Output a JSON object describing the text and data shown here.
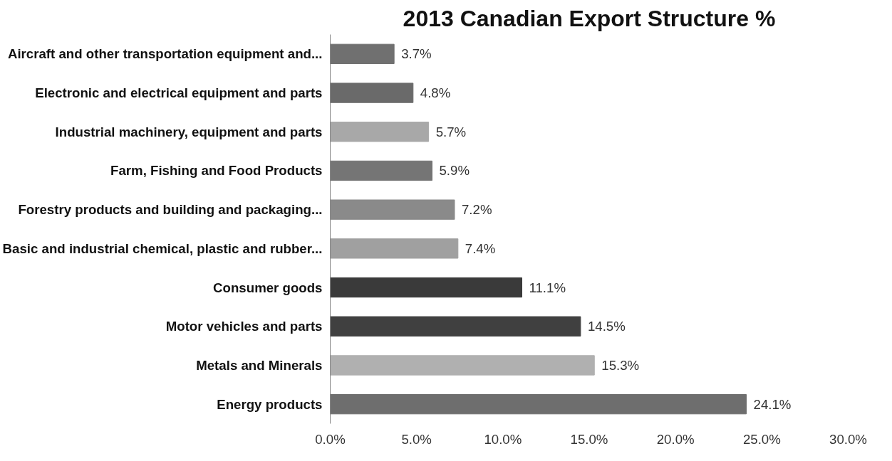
{
  "chart_data": {
    "type": "bar",
    "orientation": "horizontal",
    "title": "2013 Canadian Export Structure %",
    "categories": [
      "Aircraft and other transportation equipment and...",
      "Electronic and electrical equipment and parts",
      "Industrial machinery, equipment and parts",
      "Farm, Fishing and Food Products",
      "Forestry products and building and packaging...",
      "Basic and industrial chemical, plastic and rubber...",
      "Consumer goods",
      "Motor vehicles and parts",
      "Metals and Minerals",
      "Energy products"
    ],
    "values": [
      3.7,
      4.8,
      5.7,
      5.9,
      7.2,
      7.4,
      11.1,
      14.5,
      15.3,
      24.1
    ],
    "value_labels": [
      "3.7%",
      "4.8%",
      "5.7%",
      "5.9%",
      "7.2%",
      "7.4%",
      "11.1%",
      "14.5%",
      "15.3%",
      "24.1%"
    ],
    "colors": [
      "#707070",
      "#6a6a6a",
      "#a8a8a8",
      "#757575",
      "#8a8a8a",
      "#a0a0a0",
      "#3a3a3a",
      "#404040",
      "#b0b0b0",
      "#6e6e6e"
    ],
    "xlim": [
      0,
      30
    ],
    "xticks": [
      {
        "value": 0,
        "label": "0.0%"
      },
      {
        "value": 5,
        "label": "5.0%"
      },
      {
        "value": 10,
        "label": "10.0%"
      },
      {
        "value": 15,
        "label": "15.0%"
      },
      {
        "value": 20,
        "label": "20.0%"
      },
      {
        "value": 25,
        "label": "25.0%"
      },
      {
        "value": 30,
        "label": "30.0%"
      }
    ],
    "grid": false
  }
}
